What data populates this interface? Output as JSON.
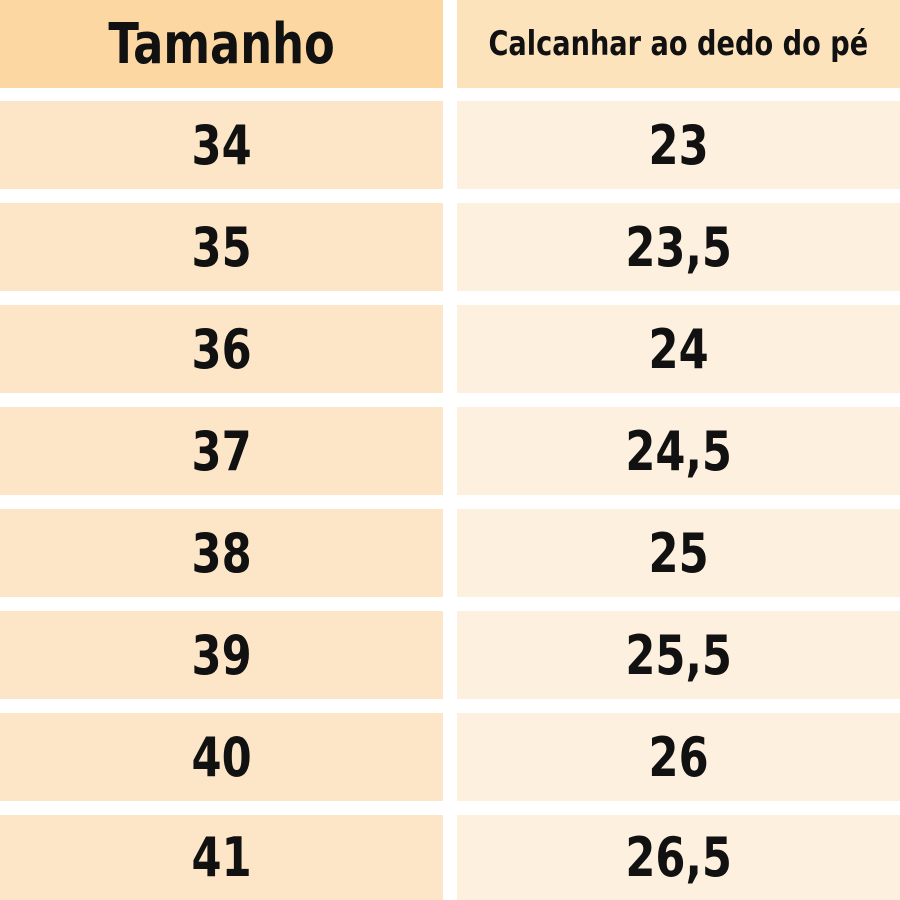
{
  "table": {
    "header": [
      "Tamanho",
      "Calcanhar ao dedo do pé"
    ],
    "rows": [
      [
        "34",
        "23"
      ],
      [
        "35",
        "23,5"
      ],
      [
        "36",
        "24"
      ],
      [
        "37",
        "24,5"
      ],
      [
        "38",
        "25"
      ],
      [
        "39",
        "25,5"
      ],
      [
        "40",
        "26"
      ],
      [
        "41",
        "26,5"
      ]
    ]
  }
}
